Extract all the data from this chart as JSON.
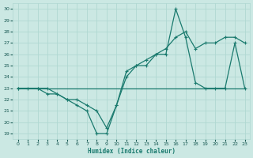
{
  "xlabel": "Humidex (Indice chaleur)",
  "bg_color": "#cbe8e3",
  "grid_color": "#b0d8d2",
  "line_color": "#1a7a6e",
  "xlim": [
    -0.5,
    23.5
  ],
  "ylim": [
    18.5,
    30.5
  ],
  "xticks": [
    0,
    1,
    2,
    3,
    4,
    5,
    6,
    7,
    8,
    9,
    10,
    11,
    12,
    13,
    14,
    15,
    16,
    17,
    18,
    19,
    20,
    21,
    22,
    23
  ],
  "yticks": [
    19,
    20,
    21,
    22,
    23,
    24,
    25,
    26,
    27,
    28,
    29,
    30
  ],
  "series1_x": [
    0,
    1,
    2,
    3,
    4,
    5,
    6,
    7,
    8,
    9,
    10,
    11,
    12,
    13,
    14,
    15,
    16,
    17,
    18,
    19,
    20,
    21,
    22,
    23
  ],
  "series1_y": [
    23,
    23,
    23,
    22.5,
    22.5,
    22,
    21.5,
    21,
    19,
    19,
    21.5,
    24,
    25,
    25,
    26,
    26,
    30,
    27.5,
    23.5,
    23,
    23,
    23,
    27,
    23
  ],
  "series2_x": [
    0,
    2,
    3,
    4,
    5,
    6,
    7,
    8,
    9,
    10,
    11,
    12,
    13,
    14,
    15,
    16,
    17,
    18,
    19,
    20,
    21,
    22,
    23
  ],
  "series2_y": [
    23,
    23,
    23,
    22.5,
    22,
    22,
    21.5,
    21,
    19.5,
    21.5,
    24.5,
    25,
    25.5,
    26,
    26.5,
    27.5,
    28,
    26.5,
    27,
    27,
    27.5,
    27.5,
    27
  ],
  "series3_x": [
    0,
    23
  ],
  "series3_y": [
    23,
    23
  ]
}
